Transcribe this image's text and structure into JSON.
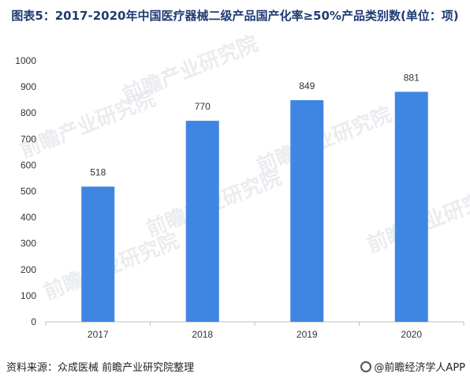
{
  "title": "图表5：2017-2020年中国医疗器械二级产品国产化率≥50%产品类别数(单位：项)",
  "watermark": "前瞻产业研究院",
  "footer": {
    "source": "资料来源：众成医械 前瞻产业研究院整理",
    "brand": "@前瞻经济学人APP"
  },
  "colors": {
    "bar": "#3f86e3",
    "axis": "#bfbfbf",
    "title": "#1f3b73"
  },
  "chart_data": {
    "type": "bar",
    "title": "图表5：2017-2020年中国医疗器械二级产品国产化率≥50%产品类别数(单位：项)",
    "xlabel": "",
    "ylabel": "",
    "categories": [
      "2017",
      "2018",
      "2019",
      "2020"
    ],
    "values": [
      518,
      770,
      849,
      881
    ],
    "ylim": [
      0,
      1000
    ],
    "yticks": [
      0,
      100,
      200,
      300,
      400,
      500,
      600,
      700,
      800,
      900,
      1000
    ],
    "grid": false,
    "legend": "none"
  }
}
